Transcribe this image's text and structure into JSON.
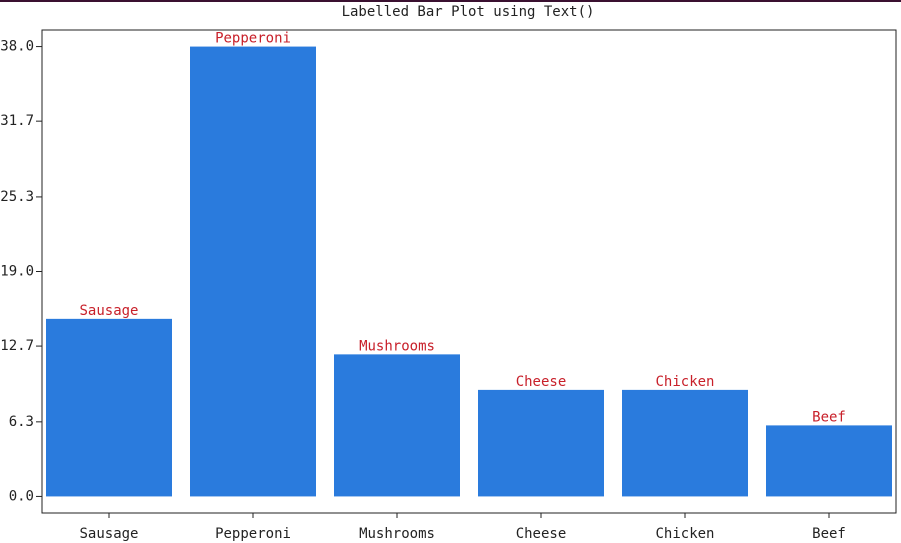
{
  "chart_data": {
    "type": "bar",
    "title": "Labelled Bar Plot using Text()",
    "categories": [
      "Sausage",
      "Pepperoni",
      "Mushrooms",
      "Cheese",
      "Chicken",
      "Beef"
    ],
    "values": [
      15,
      38,
      12,
      9,
      9,
      6
    ],
    "color": "#2a7bdd",
    "label_color": "#c8202a",
    "ylim": [
      -1.4,
      39.4
    ],
    "yticks": [
      {
        "value": 0,
        "label": "0.0"
      },
      6.3,
      12.7,
      {
        "value": 19,
        "label": "19.0"
      },
      25.3,
      31.7,
      {
        "value": 38,
        "label": "38.0"
      }
    ],
    "grid": false
  }
}
